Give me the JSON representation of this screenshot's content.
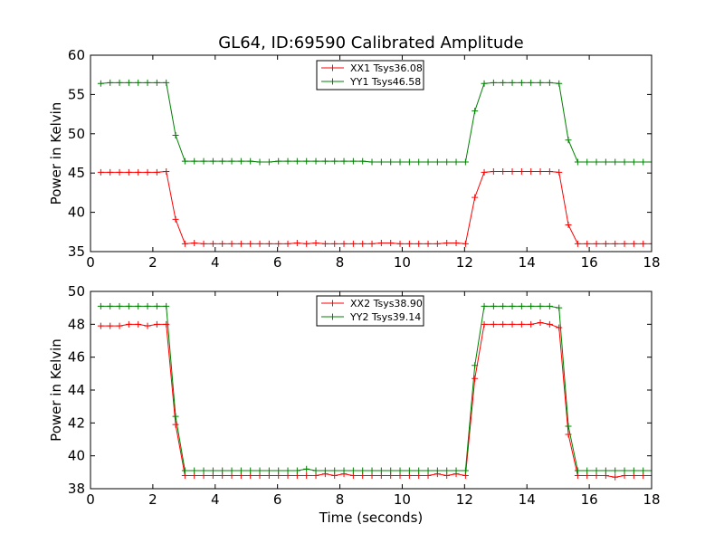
{
  "title": "GL64, ID:69590 Calibrated Amplitude",
  "chart_data": [
    {
      "type": "line",
      "ylabel": "Power in Kelvin",
      "xlabel": "",
      "xlim": [
        0,
        18
      ],
      "ylim": [
        35,
        60
      ],
      "xticks": [
        0,
        2,
        4,
        6,
        8,
        10,
        12,
        14,
        16,
        18
      ],
      "yticks": [
        35,
        40,
        45,
        50,
        55,
        60
      ],
      "grid": false,
      "legend_position": "top-center",
      "series": [
        {
          "name": "XX1 Tsys36.08",
          "color": "#ff0000",
          "x": [
            0.33,
            0.63,
            0.93,
            1.23,
            1.53,
            1.83,
            2.13,
            2.43,
            2.73,
            3.03,
            3.33,
            3.63,
            3.93,
            4.23,
            4.53,
            4.83,
            5.13,
            5.43,
            5.73,
            6.03,
            6.33,
            6.63,
            6.93,
            7.23,
            7.53,
            7.83,
            8.13,
            8.43,
            8.73,
            9.03,
            9.33,
            9.63,
            9.93,
            10.23,
            10.53,
            10.83,
            11.13,
            11.43,
            11.73,
            12.03,
            12.33,
            12.63,
            12.93,
            13.23,
            13.53,
            13.83,
            14.13,
            14.43,
            14.73,
            15.03,
            15.33,
            15.63,
            15.93,
            16.23,
            16.53,
            16.83,
            17.13,
            17.43,
            17.73,
            18.03
          ],
          "y": [
            45.1,
            45.1,
            45.1,
            45.1,
            45.1,
            45.1,
            45.1,
            45.2,
            39.1,
            36.0,
            36.1,
            36.0,
            36.0,
            36.0,
            36.0,
            36.0,
            36.0,
            36.0,
            36.0,
            36.0,
            36.0,
            36.1,
            36.0,
            36.1,
            36.0,
            36.0,
            36.0,
            36.0,
            36.0,
            36.0,
            36.1,
            36.1,
            36.0,
            36.0,
            36.0,
            36.0,
            36.0,
            36.1,
            36.1,
            36.0,
            41.9,
            45.1,
            45.2,
            45.2,
            45.2,
            45.2,
            45.2,
            45.2,
            45.2,
            45.1,
            38.4,
            36.0,
            36.0,
            36.0,
            36.0,
            36.0,
            36.0,
            36.0,
            36.0,
            36.0
          ]
        },
        {
          "name": "YY1 Tsys46.58",
          "color": "#008000",
          "x": [
            0.33,
            0.63,
            0.93,
            1.23,
            1.53,
            1.83,
            2.13,
            2.43,
            2.73,
            3.03,
            3.33,
            3.63,
            3.93,
            4.23,
            4.53,
            4.83,
            5.13,
            5.43,
            5.73,
            6.03,
            6.33,
            6.63,
            6.93,
            7.23,
            7.53,
            7.83,
            8.13,
            8.43,
            8.73,
            9.03,
            9.33,
            9.63,
            9.93,
            10.23,
            10.53,
            10.83,
            11.13,
            11.43,
            11.73,
            12.03,
            12.33,
            12.63,
            12.93,
            13.23,
            13.53,
            13.83,
            14.13,
            14.43,
            14.73,
            15.03,
            15.33,
            15.63,
            15.93,
            16.23,
            16.53,
            16.83,
            17.13,
            17.43,
            17.73,
            18.03
          ],
          "y": [
            56.4,
            56.5,
            56.5,
            56.5,
            56.5,
            56.5,
            56.5,
            56.5,
            49.8,
            46.5,
            46.5,
            46.5,
            46.5,
            46.5,
            46.5,
            46.5,
            46.5,
            46.4,
            46.4,
            46.5,
            46.5,
            46.5,
            46.5,
            46.5,
            46.5,
            46.5,
            46.5,
            46.5,
            46.5,
            46.4,
            46.4,
            46.4,
            46.4,
            46.4,
            46.4,
            46.4,
            46.4,
            46.4,
            46.4,
            46.4,
            52.9,
            56.4,
            56.5,
            56.5,
            56.5,
            56.5,
            56.5,
            56.5,
            56.5,
            56.4,
            49.2,
            46.4,
            46.4,
            46.4,
            46.4,
            46.4,
            46.4,
            46.4,
            46.4,
            46.4
          ]
        }
      ]
    },
    {
      "type": "line",
      "ylabel": "Power in Kelvin",
      "xlabel": "Time (seconds)",
      "xlim": [
        0,
        18
      ],
      "ylim": [
        38,
        50
      ],
      "xticks": [
        0,
        2,
        4,
        6,
        8,
        10,
        12,
        14,
        16,
        18
      ],
      "yticks": [
        38,
        40,
        42,
        44,
        46,
        48,
        50
      ],
      "grid": false,
      "legend_position": "top-center",
      "series": [
        {
          "name": "XX2 Tsys38.90",
          "color": "#ff0000",
          "x": [
            0.33,
            0.63,
            0.93,
            1.23,
            1.53,
            1.83,
            2.13,
            2.43,
            2.73,
            3.03,
            3.33,
            3.63,
            3.93,
            4.23,
            4.53,
            4.83,
            5.13,
            5.43,
            5.73,
            6.03,
            6.33,
            6.63,
            6.93,
            7.23,
            7.53,
            7.83,
            8.13,
            8.43,
            8.73,
            9.03,
            9.33,
            9.63,
            9.93,
            10.23,
            10.53,
            10.83,
            11.13,
            11.43,
            11.73,
            12.03,
            12.33,
            12.63,
            12.93,
            13.23,
            13.53,
            13.83,
            14.13,
            14.43,
            14.73,
            15.03,
            15.33,
            15.63,
            15.93,
            16.23,
            16.53,
            16.83,
            17.13,
            17.43,
            17.73,
            18.03
          ],
          "y": [
            47.9,
            47.9,
            47.9,
            48.0,
            48.0,
            47.9,
            48.0,
            48.0,
            41.9,
            38.8,
            38.8,
            38.8,
            38.8,
            38.8,
            38.8,
            38.8,
            38.8,
            38.8,
            38.8,
            38.8,
            38.8,
            38.8,
            38.8,
            38.8,
            38.9,
            38.8,
            38.9,
            38.8,
            38.8,
            38.8,
            38.8,
            38.8,
            38.8,
            38.8,
            38.8,
            38.8,
            38.9,
            38.8,
            38.9,
            38.8,
            44.7,
            48.0,
            48.0,
            48.0,
            48.0,
            48.0,
            48.0,
            48.1,
            48.0,
            47.8,
            41.3,
            38.8,
            38.8,
            38.8,
            38.8,
            38.7,
            38.8,
            38.8,
            38.8,
            38.8
          ]
        },
        {
          "name": "YY2 Tsys39.14",
          "color": "#008000",
          "x": [
            0.33,
            0.63,
            0.93,
            1.23,
            1.53,
            1.83,
            2.13,
            2.43,
            2.73,
            3.03,
            3.33,
            3.63,
            3.93,
            4.23,
            4.53,
            4.83,
            5.13,
            5.43,
            5.73,
            6.03,
            6.33,
            6.63,
            6.93,
            7.23,
            7.53,
            7.83,
            8.13,
            8.43,
            8.73,
            9.03,
            9.33,
            9.63,
            9.93,
            10.23,
            10.53,
            10.83,
            11.13,
            11.43,
            11.73,
            12.03,
            12.33,
            12.63,
            12.93,
            13.23,
            13.53,
            13.83,
            14.13,
            14.43,
            14.73,
            15.03,
            15.33,
            15.63,
            15.93,
            16.23,
            16.53,
            16.83,
            17.13,
            17.43,
            17.73,
            18.03
          ],
          "y": [
            49.1,
            49.1,
            49.1,
            49.1,
            49.1,
            49.1,
            49.1,
            49.1,
            42.4,
            39.1,
            39.1,
            39.1,
            39.1,
            39.1,
            39.1,
            39.1,
            39.1,
            39.1,
            39.1,
            39.1,
            39.1,
            39.1,
            39.2,
            39.1,
            39.1,
            39.1,
            39.1,
            39.1,
            39.1,
            39.1,
            39.1,
            39.1,
            39.1,
            39.1,
            39.1,
            39.1,
            39.1,
            39.1,
            39.1,
            39.1,
            45.5,
            49.1,
            49.1,
            49.1,
            49.1,
            49.1,
            49.1,
            49.1,
            49.1,
            49.0,
            41.8,
            39.1,
            39.1,
            39.1,
            39.1,
            39.1,
            39.1,
            39.1,
            39.1,
            39.1
          ]
        }
      ]
    }
  ]
}
